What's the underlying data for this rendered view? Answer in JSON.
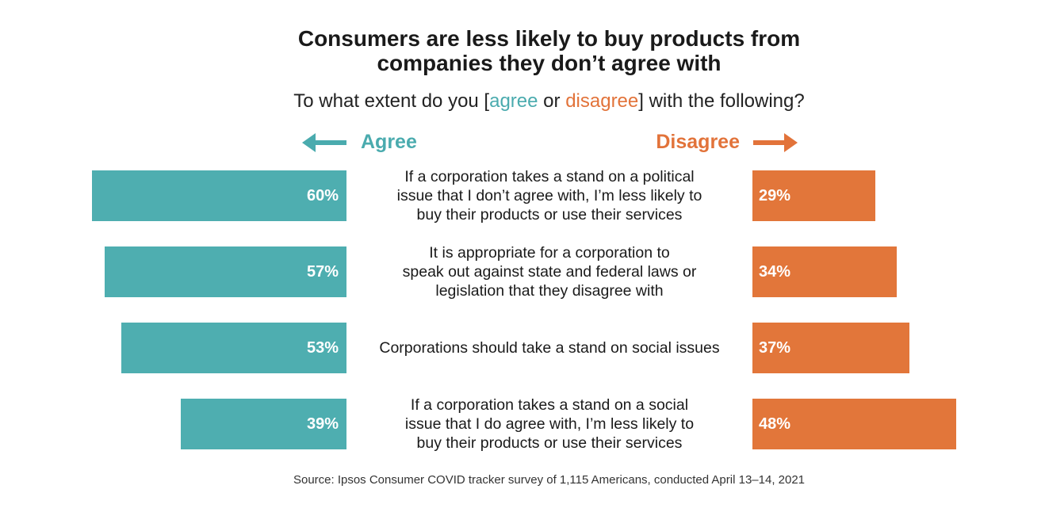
{
  "chart_data": {
    "type": "bar",
    "orientation": "horizontal-diverging",
    "title": [
      "Consumers are less likely to buy products from",
      "companies they don’t agree with"
    ],
    "subtitle": {
      "before": "To what extent do you [",
      "agree": "agree",
      "or": " or ",
      "disagree": "disagree",
      "after": "] with the following?"
    },
    "left_header": "Agree",
    "right_header": "Disagree",
    "categories": [
      [
        "If a corporation takes a stand on a political",
        "issue that I don’t agree with, I’m less likely to",
        "buy their products or use their services"
      ],
      [
        "It is appropriate for a corporation to",
        "speak out against state and federal laws or",
        "legislation that they disagree with"
      ],
      [
        "Corporations should take a stand on social issues"
      ],
      [
        "If a corporation takes a stand on a social",
        "issue that I do agree with, I’m less likely to",
        "buy their products or use their services"
      ]
    ],
    "series": [
      {
        "name": "Agree",
        "color": "#4eaeb0",
        "values": [
          60,
          57,
          53,
          39
        ],
        "labels": [
          "60%",
          "57%",
          "53%",
          "39%"
        ]
      },
      {
        "name": "Disagree",
        "color": "#e2763a",
        "values": [
          29,
          34,
          37,
          48
        ],
        "labels": [
          "29%",
          "34%",
          "37%",
          "48%"
        ]
      }
    ],
    "unit": "%",
    "source": "Source: Ipsos Consumer COVID tracker survey of 1,115 Americans, conducted April 13–14, 2021"
  }
}
